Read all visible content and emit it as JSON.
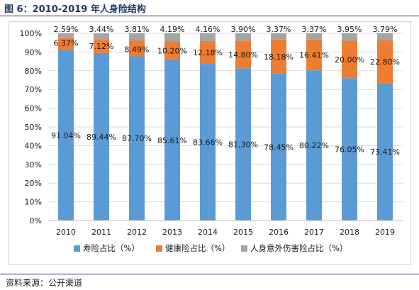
{
  "figure_title": "图 6：2010-2019 年人身险结构",
  "source_note": "资料来源：公开渠道",
  "chart_data": {
    "type": "bar",
    "stacked": true,
    "percent_stacked": true,
    "categories": [
      "2010",
      "2011",
      "2012",
      "2013",
      "2014",
      "2015",
      "2016",
      "2017",
      "2018",
      "2019"
    ],
    "series": [
      {
        "name": "寿险占比（%）",
        "color": "#5b9bd5",
        "values": [
          91.04,
          89.44,
          87.7,
          85.61,
          83.66,
          81.3,
          78.45,
          80.22,
          76.05,
          73.41
        ],
        "labels": [
          "91.04%",
          "89.44%",
          "87.70%",
          "85.61%",
          "83.66%",
          "81.30%",
          "78.45%",
          "80.22%",
          "76.05%",
          "73.41%"
        ]
      },
      {
        "name": "健康险占比（%）",
        "color": "#ed7d31",
        "values": [
          6.37,
          7.12,
          8.49,
          10.2,
          12.18,
          14.8,
          18.18,
          16.41,
          20.0,
          22.8
        ],
        "labels": [
          "6.37%",
          "7.12%",
          "8.49%",
          "10.20%",
          "12.18%",
          "14.80%",
          "18.18%",
          "16.41%",
          "20.00%",
          "22.80%"
        ]
      },
      {
        "name": "人身意外伤害险占比（%）",
        "color": "#a5a5a5",
        "values": [
          2.59,
          3.44,
          3.81,
          4.19,
          4.16,
          3.9,
          3.37,
          3.37,
          3.95,
          3.79
        ],
        "labels": [
          "2.59%",
          "3.44%",
          "3.81%",
          "4.19%",
          "4.16%",
          "3.90%",
          "3.37%",
          "3.37%",
          "3.95%",
          "3.79%"
        ]
      }
    ],
    "y_ticks": [
      "0%",
      "10%",
      "20%",
      "30%",
      "40%",
      "50%",
      "60%",
      "70%",
      "80%",
      "90%",
      "100%"
    ],
    "ylim": [
      0,
      100
    ],
    "grid": true,
    "legend_position": "bottom"
  }
}
